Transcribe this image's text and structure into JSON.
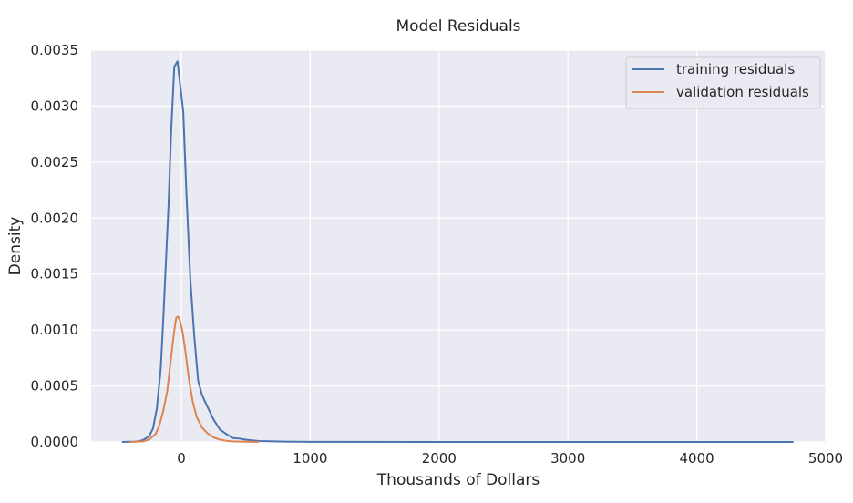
{
  "chart_data": {
    "type": "line",
    "title": "Model Residuals",
    "xlabel": "Thousands of Dollars",
    "ylabel": "Density",
    "xlim": [
      -700,
      5000
    ],
    "ylim": [
      0,
      0.0035
    ],
    "xticks": [
      0,
      1000,
      2000,
      3000,
      4000,
      5000
    ],
    "xtick_labels": [
      "0",
      "1000",
      "2000",
      "3000",
      "4000",
      "5000"
    ],
    "yticks": [
      0,
      0.0005,
      0.001,
      0.0015,
      0.002,
      0.0025,
      0.003,
      0.0035
    ],
    "ytick_labels": [
      "0.0000",
      "0.0005",
      "0.0010",
      "0.0015",
      "0.0020",
      "0.0025",
      "0.0030",
      "0.0035"
    ],
    "grid": true,
    "legend_position": "top-right",
    "background": "#eaeaf2",
    "series": [
      {
        "name": "training residuals",
        "color": "#4c72b0",
        "points": [
          [
            -460,
            0
          ],
          [
            -350,
            3e-06
          ],
          [
            -300,
            1.5e-05
          ],
          [
            -250,
            5e-05
          ],
          [
            -220,
            0.00012
          ],
          [
            -190,
            0.0003
          ],
          [
            -160,
            0.00065
          ],
          [
            -140,
            0.0011
          ],
          [
            -120,
            0.0016
          ],
          [
            -100,
            0.0021
          ],
          [
            -80,
            0.00275
          ],
          [
            -55,
            0.00335
          ],
          [
            -30,
            0.0034
          ],
          [
            -10,
            0.0032
          ],
          [
            15,
            0.00295
          ],
          [
            40,
            0.0022
          ],
          [
            70,
            0.00145
          ],
          [
            100,
            0.00095
          ],
          [
            130,
            0.00055
          ],
          [
            160,
            0.00042
          ],
          [
            200,
            0.00032
          ],
          [
            250,
            0.0002
          ],
          [
            300,
            0.00011
          ],
          [
            350,
            7e-05
          ],
          [
            400,
            3.5e-05
          ],
          [
            450,
            3e-05
          ],
          [
            500,
            2e-05
          ],
          [
            600,
            8e-06
          ],
          [
            800,
            3e-06
          ],
          [
            1000,
            1e-06
          ],
          [
            2000,
            0
          ],
          [
            3000,
            0
          ],
          [
            4000,
            0
          ],
          [
            4750,
            0
          ]
        ]
      },
      {
        "name": "validation residuals",
        "color": "#dd8452",
        "points": [
          [
            -400,
            0
          ],
          [
            -300,
            5e-06
          ],
          [
            -250,
            2e-05
          ],
          [
            -200,
            7e-05
          ],
          [
            -170,
            0.00015
          ],
          [
            -140,
            0.00028
          ],
          [
            -110,
            0.00045
          ],
          [
            -80,
            0.00075
          ],
          [
            -60,
            0.00095
          ],
          [
            -40,
            0.00111
          ],
          [
            -25,
            0.00112
          ],
          [
            -10,
            0.00108
          ],
          [
            10,
            0.00098
          ],
          [
            30,
            0.00082
          ],
          [
            60,
            0.00055
          ],
          [
            90,
            0.00035
          ],
          [
            120,
            0.00022
          ],
          [
            160,
            0.00013
          ],
          [
            200,
            8e-05
          ],
          [
            250,
            4e-05
          ],
          [
            300,
            2e-05
          ],
          [
            350,
            1e-05
          ],
          [
            400,
            5e-06
          ],
          [
            500,
            2e-06
          ],
          [
            600,
            0
          ]
        ]
      }
    ]
  }
}
